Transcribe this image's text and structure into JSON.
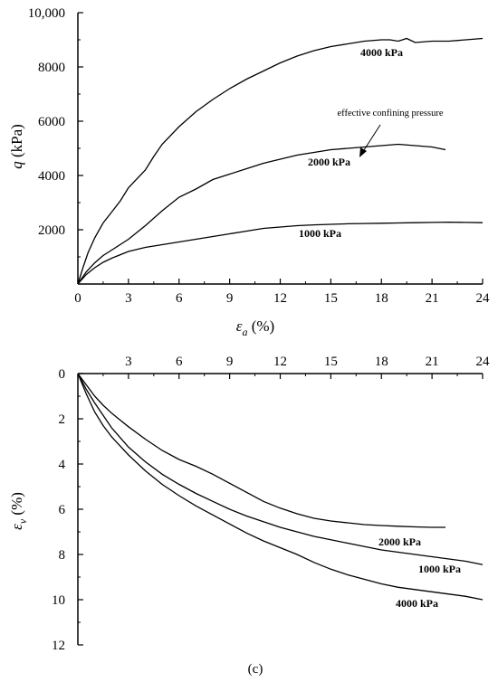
{
  "chart_data": [
    {
      "type": "line",
      "xlabel": "ε_a (%)",
      "ylabel": "q (kPa)",
      "xlim": [
        0,
        24
      ],
      "ylim": [
        0,
        10000
      ],
      "xticks": [
        "0",
        "3",
        "6",
        "9",
        "12",
        "15",
        "18",
        "21",
        "24"
      ],
      "yticks": [
        "2000",
        "4000",
        "6000",
        "8000",
        "10,000"
      ],
      "annotation": "effective confining pressure",
      "series": [
        {
          "name": "4000 kPa",
          "x": [
            0,
            0.3,
            0.6,
            1,
            1.5,
            2,
            2.5,
            3,
            4,
            4.5,
            5,
            6,
            7,
            8,
            9,
            10,
            11,
            12,
            13,
            14,
            15,
            16,
            17,
            18,
            18.5,
            19,
            19.5,
            20,
            21,
            22,
            23,
            24
          ],
          "y": [
            0,
            600,
            1150,
            1700,
            2250,
            2650,
            3050,
            3550,
            4200,
            4700,
            5150,
            5800,
            6350,
            6800,
            7200,
            7550,
            7850,
            8150,
            8400,
            8600,
            8750,
            8850,
            8950,
            9000,
            9000,
            8950,
            9050,
            8900,
            8950,
            8950,
            9000,
            9050
          ]
        },
        {
          "name": "2000 kPa",
          "x": [
            0,
            0.5,
            1,
            1.5,
            2,
            3,
            4,
            5,
            6,
            7,
            8,
            9,
            10,
            11,
            12,
            13,
            14,
            15,
            16,
            17,
            18,
            19,
            20,
            21,
            21.8
          ],
          "y": [
            0,
            450,
            780,
            1050,
            1250,
            1650,
            2150,
            2700,
            3200,
            3500,
            3850,
            4050,
            4250,
            4450,
            4600,
            4750,
            4850,
            4950,
            5000,
            5050,
            5100,
            5150,
            5100,
            5050,
            4950
          ]
        },
        {
          "name": "1000 kPa",
          "x": [
            0,
            0.5,
            1,
            1.5,
            2,
            3,
            4,
            5,
            6,
            7,
            8,
            9,
            10,
            11,
            12,
            13,
            14,
            15,
            16,
            17,
            18,
            19,
            20,
            21,
            22,
            23,
            24
          ],
          "y": [
            0,
            350,
            600,
            800,
            950,
            1200,
            1350,
            1450,
            1550,
            1650,
            1750,
            1850,
            1950,
            2050,
            2100,
            2150,
            2180,
            2200,
            2220,
            2230,
            2240,
            2250,
            2260,
            2270,
            2280,
            2270,
            2260
          ]
        }
      ]
    },
    {
      "type": "line",
      "ylabel": "ε_v (%)",
      "panel_label": "(c)",
      "xlim": [
        0,
        24
      ],
      "ylim": [
        0,
        12
      ],
      "y_inverted": true,
      "xticks": [
        "3",
        "6",
        "9",
        "12",
        "15",
        "18",
        "21",
        "24"
      ],
      "yticks": [
        "0",
        "2",
        "4",
        "6",
        "8",
        "10",
        "12"
      ],
      "series": [
        {
          "name": "2000 kPa",
          "x": [
            0,
            0.5,
            1,
            1.5,
            2,
            3,
            4,
            5,
            6,
            7,
            8,
            9,
            10,
            11,
            12,
            13,
            14,
            15,
            16,
            17,
            18,
            19,
            20,
            21,
            21.8
          ],
          "y": [
            0,
            0.5,
            1.0,
            1.4,
            1.75,
            2.35,
            2.9,
            3.4,
            3.8,
            4.1,
            4.45,
            4.85,
            5.25,
            5.65,
            5.95,
            6.2,
            6.4,
            6.52,
            6.6,
            6.68,
            6.72,
            6.75,
            6.78,
            6.8,
            6.8
          ]
        },
        {
          "name": "1000 kPa",
          "x": [
            0,
            0.5,
            1,
            2,
            3,
            4,
            5,
            6,
            7,
            8,
            9,
            10,
            11,
            12,
            13,
            14,
            15,
            16,
            17,
            18,
            19,
            20,
            21,
            22,
            23,
            24
          ],
          "y": [
            0,
            0.7,
            1.3,
            2.4,
            3.25,
            3.9,
            4.45,
            4.9,
            5.3,
            5.65,
            6.0,
            6.3,
            6.55,
            6.8,
            7.0,
            7.2,
            7.35,
            7.5,
            7.65,
            7.8,
            7.9,
            8.0,
            8.1,
            8.2,
            8.3,
            8.45
          ]
        },
        {
          "name": "4000 kPa",
          "x": [
            0,
            0.5,
            1,
            1.5,
            2,
            3,
            4,
            5,
            6,
            7,
            8,
            9,
            10,
            11,
            12,
            13,
            14,
            15,
            16,
            17,
            18,
            19,
            20,
            21,
            22,
            23,
            24
          ],
          "y": [
            0,
            0.9,
            1.7,
            2.3,
            2.8,
            3.6,
            4.3,
            4.9,
            5.4,
            5.85,
            6.25,
            6.65,
            7.05,
            7.4,
            7.7,
            8.0,
            8.35,
            8.65,
            8.9,
            9.1,
            9.3,
            9.45,
            9.55,
            9.65,
            9.75,
            9.85,
            10.0
          ]
        }
      ]
    }
  ]
}
